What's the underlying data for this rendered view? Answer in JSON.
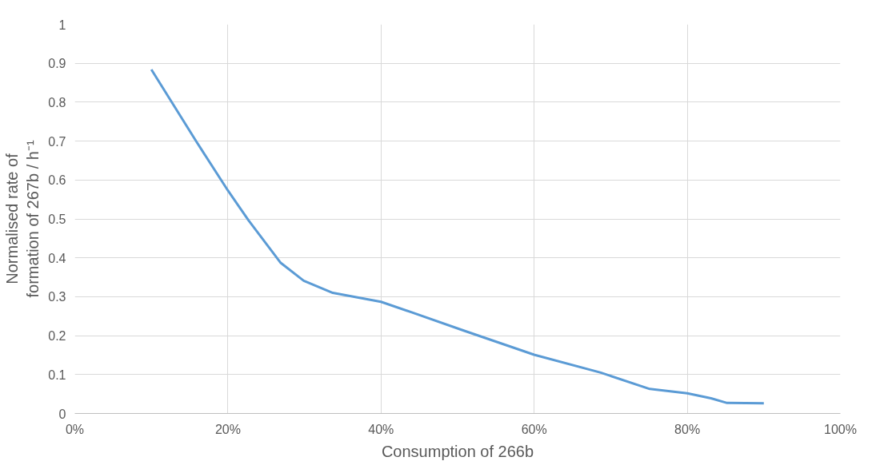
{
  "chart_data": {
    "type": "line",
    "xlabel": "Consumption of 266b",
    "ylabel": "Normalised rate of formation of 267b / h⁻¹",
    "x": [
      10.0,
      15.9,
      20.0,
      22.7,
      26.9,
      29.9,
      33.7,
      40.0,
      44.0,
      50.8,
      60.0,
      68.7,
      75.1,
      80.0,
      83.1,
      85.2,
      90.0
    ],
    "series": [
      {
        "color": "#5b9bd5",
        "values": [
          0.884,
          0.698,
          0.573,
          0.496,
          0.387,
          0.341,
          0.31,
          0.287,
          0.26,
          0.213,
          0.151,
          0.105,
          0.063,
          0.052,
          0.039,
          0.027,
          0.026
        ]
      }
    ],
    "xlim": [
      0,
      100
    ],
    "xticks": [
      {
        "value": 0,
        "label": "0%"
      },
      {
        "value": 20,
        "label": "20%"
      },
      {
        "value": 40,
        "label": "40%"
      },
      {
        "value": 60,
        "label": "60%"
      },
      {
        "value": 80,
        "label": "80%"
      },
      {
        "value": 100,
        "label": "100%"
      }
    ],
    "ylim": [
      0,
      1
    ],
    "yticks": [
      0,
      0.1,
      0.2,
      0.3,
      0.4,
      0.5,
      0.6,
      0.7,
      0.8,
      0.9,
      1
    ],
    "grid": true,
    "line_style": "solid",
    "marker": "none"
  }
}
